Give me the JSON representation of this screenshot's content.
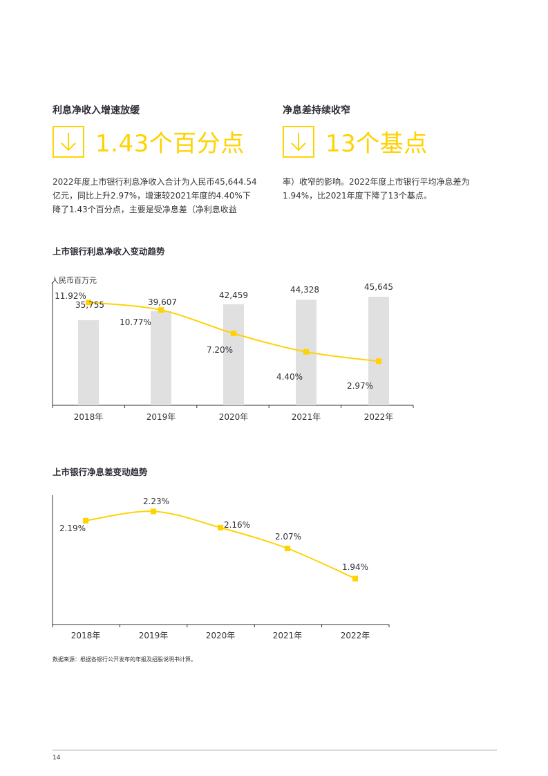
{
  "sections": [
    {
      "heading": "利息净收入增速放缓",
      "kpi": "1.43个百分点",
      "paragraph_lines": [
        "2022年度上市银行利息净收入合计为人民币45,644.54",
        "亿元，同比上升2.97%，增速较2021年度的4.40%下",
        "降了1.43个百分点，主要是受净息差（净利息收益"
      ]
    },
    {
      "heading": "净息差持续收窄",
      "kpi": "13个基点",
      "paragraph_lines": [
        "率）收窄的影响。2022年度上市银行平均净息差为",
        "1.94%，比2021年度下降了13个基点。"
      ]
    }
  ],
  "chart1_title": "上市银行利息净收入变动趋势",
  "chart2_title": "上市银行净息差变动趋势",
  "chart_data": [
    {
      "type": "bar",
      "title": "上市银行利息净收入变动趋势",
      "ylabel": "人民币百万元",
      "categories": [
        "2018年",
        "2019年",
        "2020年",
        "2021年",
        "2022年"
      ],
      "series": [
        {
          "values": [
            35755,
            39607,
            42459,
            44328,
            45645
          ],
          "labels": [
            "35,755",
            "39,607",
            "42,459",
            "44,328",
            "45,645"
          ],
          "color": "#e0e0e0"
        },
        {
          "type": "line",
          "values": [
            11.92,
            10.77,
            7.2,
            4.4,
            2.97
          ],
          "labels": [
            "11.92%",
            "10.77%",
            "7.20%",
            "4.40%",
            "2.97%"
          ],
          "color": "#ffd200"
        }
      ],
      "grid": false
    },
    {
      "type": "line",
      "title": "上市银行净息差变动趋势",
      "categories": [
        "2018年",
        "2019年",
        "2020年",
        "2021年",
        "2022年"
      ],
      "series": [
        {
          "values": [
            2.19,
            2.23,
            2.16,
            2.07,
            1.94
          ],
          "labels": [
            "2.19%",
            "2.23%",
            "2.16%",
            "2.07%",
            "1.94%"
          ],
          "color": "#ffd200"
        }
      ],
      "grid": false
    }
  ],
  "source_note": "数据来源：根据各银行公开发布的年报及招股说明书计算。",
  "page_number": "14",
  "colors": {
    "accent": "#ffd200",
    "bar": "#e0e0e0",
    "text": "#2e2e38"
  }
}
